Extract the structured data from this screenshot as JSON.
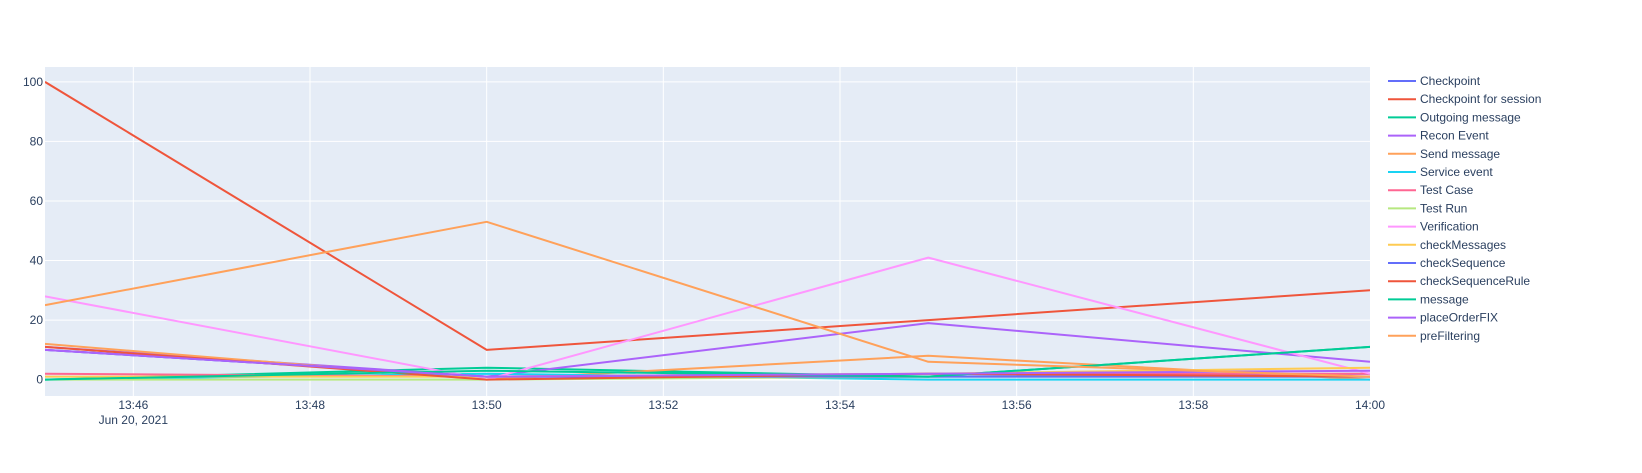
{
  "chart_data": {
    "type": "line",
    "title": "",
    "xlabel": "",
    "ylabel": "",
    "x_axis_type": "time",
    "xlim": [
      "2021-06-20 13:45",
      "2021-06-20 14:00"
    ],
    "ylim": [
      -5.5,
      105
    ],
    "grid": true,
    "legend_position": "right",
    "x": [
      "2021-06-20 13:45",
      "2021-06-20 13:50",
      "2021-06-20 13:55",
      "2021-06-20 14:00"
    ],
    "x_ticks": [
      {
        "t": "2021-06-20 13:46",
        "label": "13:46",
        "sublabel": "Jun 20, 2021"
      },
      {
        "t": "2021-06-20 13:48",
        "label": "13:48"
      },
      {
        "t": "2021-06-20 13:50",
        "label": "13:50"
      },
      {
        "t": "2021-06-20 13:52",
        "label": "13:52"
      },
      {
        "t": "2021-06-20 13:54",
        "label": "13:54"
      },
      {
        "t": "2021-06-20 13:56",
        "label": "13:56"
      },
      {
        "t": "2021-06-20 13:58",
        "label": "13:58"
      },
      {
        "t": "2021-06-20 14:00",
        "label": "14:00"
      }
    ],
    "y_ticks": [
      {
        "v": 0,
        "label": "0"
      },
      {
        "v": 20,
        "label": "20"
      },
      {
        "v": 40,
        "label": "40"
      },
      {
        "v": 60,
        "label": "60"
      },
      {
        "v": 80,
        "label": "80"
      },
      {
        "v": 100,
        "label": "100"
      }
    ],
    "series": [
      {
        "name": "Checkpoint",
        "color": "#636efa",
        "values": [
          10,
          1,
          1,
          2
        ]
      },
      {
        "name": "Checkpoint for session",
        "color": "#EF553B",
        "values": [
          100,
          10,
          20,
          30
        ]
      },
      {
        "name": "Outgoing message",
        "color": "#00cc96",
        "values": [
          0,
          4,
          1,
          11
        ]
      },
      {
        "name": "Recon Event",
        "color": "#ab63fa",
        "values": [
          11,
          1,
          19,
          6
        ]
      },
      {
        "name": "Send message",
        "color": "#FFA15A",
        "values": [
          12,
          0,
          8,
          0
        ]
      },
      {
        "name": "Service event",
        "color": "#19d3f3",
        "values": [
          0,
          2,
          0,
          0
        ]
      },
      {
        "name": "Test Case",
        "color": "#FF6692",
        "values": [
          2,
          1,
          2,
          2
        ]
      },
      {
        "name": "Test Run",
        "color": "#B6E880",
        "values": [
          0,
          0,
          1,
          1
        ]
      },
      {
        "name": "Verification",
        "color": "#FF97FF",
        "values": [
          28,
          0,
          41,
          2
        ]
      },
      {
        "name": "checkMessages",
        "color": "#FECB52",
        "values": [
          1,
          1,
          2,
          4
        ]
      },
      {
        "name": "checkSequence",
        "color": "#636efa",
        "values": [
          10,
          1,
          1,
          1
        ]
      },
      {
        "name": "checkSequenceRule",
        "color": "#EF553B",
        "values": [
          11,
          0,
          2,
          1
        ]
      },
      {
        "name": "message",
        "color": "#00cc96",
        "values": [
          0,
          3,
          1,
          11
        ]
      },
      {
        "name": "placeOrderFIX",
        "color": "#ab63fa",
        "values": [
          10,
          1,
          2,
          3
        ]
      },
      {
        "name": "preFiltering",
        "color": "#FFA15A",
        "values": [
          25,
          53,
          6,
          1
        ]
      }
    ]
  }
}
